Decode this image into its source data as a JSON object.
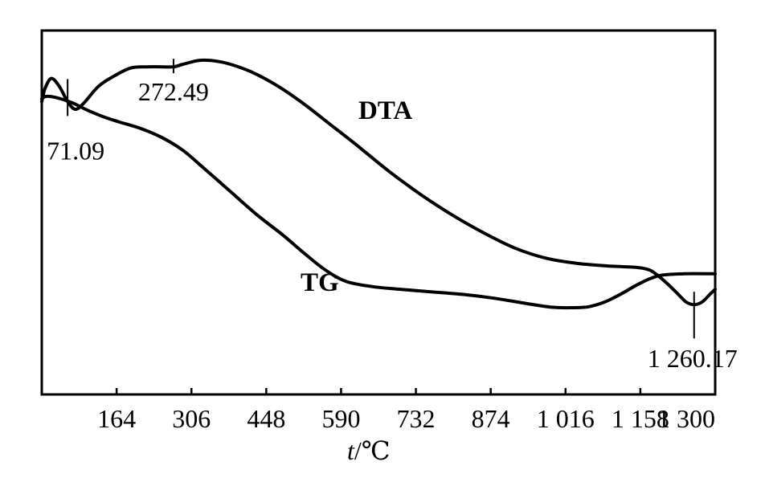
{
  "chart_data": {
    "type": "line",
    "title": "",
    "xlabel": "t/℃",
    "xlabel_var": "t",
    "xlabel_unit": "/℃",
    "ylabel": "",
    "xlim": [
      22,
      1300
    ],
    "ylim": [
      0,
      100
    ],
    "grid": false,
    "legend": "none",
    "x_ticks": [
      {
        "value": 164,
        "label": "164"
      },
      {
        "value": 306,
        "label": "306"
      },
      {
        "value": 448,
        "label": "448"
      },
      {
        "value": 590,
        "label": "590"
      },
      {
        "value": 732,
        "label": "732"
      },
      {
        "value": 874,
        "label": "874"
      },
      {
        "value": 1016,
        "label": "1 016"
      },
      {
        "value": 1158,
        "label": "1 158"
      },
      {
        "value": 1300,
        "label": "1 300"
      }
    ],
    "series": [
      {
        "name": "DTA",
        "points": [
          [
            22,
            83
          ],
          [
            28,
            88
          ],
          [
            40,
            92
          ],
          [
            55,
            89
          ],
          [
            71,
            83
          ],
          [
            85,
            80
          ],
          [
            100,
            82
          ],
          [
            130,
            89
          ],
          [
            160,
            93
          ],
          [
            190,
            96
          ],
          [
            220,
            96.5
          ],
          [
            250,
            96.5
          ],
          [
            272,
            96.5
          ],
          [
            290,
            97.5
          ],
          [
            320,
            99
          ],
          [
            350,
            98.8
          ],
          [
            380,
            97.5
          ],
          [
            420,
            94.5
          ],
          [
            470,
            89
          ],
          [
            520,
            82
          ],
          [
            570,
            74
          ],
          [
            620,
            66
          ],
          [
            680,
            56
          ],
          [
            740,
            47
          ],
          [
            800,
            39
          ],
          [
            860,
            32
          ],
          [
            920,
            26
          ],
          [
            980,
            22
          ],
          [
            1040,
            20
          ],
          [
            1100,
            19
          ],
          [
            1150,
            18.5
          ],
          [
            1175,
            17.5
          ],
          [
            1190,
            15.5
          ],
          [
            1210,
            12
          ],
          [
            1230,
            8
          ],
          [
            1245,
            5
          ],
          [
            1260,
            4
          ],
          [
            1275,
            5
          ],
          [
            1290,
            8
          ],
          [
            1300,
            10
          ]
        ]
      },
      {
        "name": "TG",
        "points": [
          [
            22,
            84
          ],
          [
            30,
            85
          ],
          [
            50,
            84.5
          ],
          [
            80,
            82.5
          ],
          [
            110,
            79.5
          ],
          [
            140,
            77
          ],
          [
            170,
            75
          ],
          [
            210,
            72.5
          ],
          [
            250,
            69
          ],
          [
            290,
            64
          ],
          [
            330,
            57
          ],
          [
            380,
            48
          ],
          [
            430,
            39
          ],
          [
            480,
            31
          ],
          [
            520,
            24
          ],
          [
            560,
            17.5
          ],
          [
            600,
            13
          ],
          [
            650,
            11
          ],
          [
            700,
            10
          ],
          [
            760,
            9
          ],
          [
            820,
            8
          ],
          [
            880,
            6.5
          ],
          [
            940,
            4.5
          ],
          [
            990,
            3
          ],
          [
            1030,
            2.8
          ],
          [
            1060,
            3.2
          ],
          [
            1090,
            5
          ],
          [
            1120,
            8
          ],
          [
            1150,
            11.5
          ],
          [
            1175,
            14
          ],
          [
            1200,
            15.5
          ],
          [
            1240,
            16
          ],
          [
            1300,
            16
          ]
        ]
      }
    ],
    "annotations": [
      {
        "label": "71.09",
        "x": 71,
        "series": "DTA"
      },
      {
        "label": "272.49",
        "x": 272,
        "series": "DTA"
      },
      {
        "label": "1 260.17",
        "x": 1260,
        "series": "DTA"
      }
    ]
  }
}
